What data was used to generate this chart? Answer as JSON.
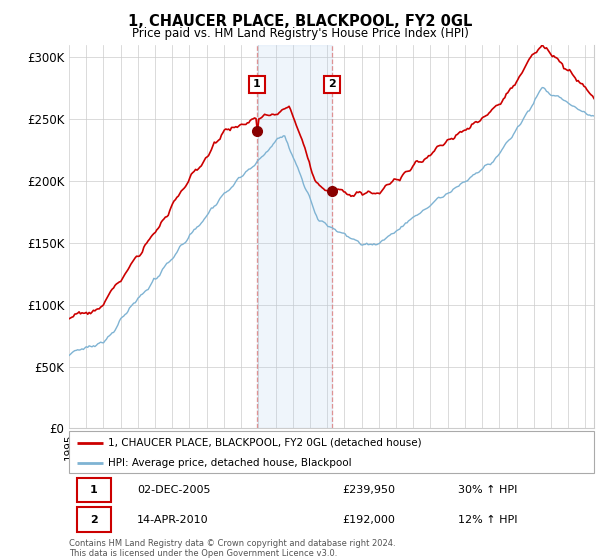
{
  "title": "1, CHAUCER PLACE, BLACKPOOL, FY2 0GL",
  "subtitle": "Price paid vs. HM Land Registry's House Price Index (HPI)",
  "ylim": [
    0,
    310000
  ],
  "yticks": [
    0,
    50000,
    100000,
    150000,
    200000,
    250000,
    300000
  ],
  "ytick_labels": [
    "£0",
    "£50K",
    "£100K",
    "£150K",
    "£200K",
    "£250K",
    "£300K"
  ],
  "sale1_date_x": 2005.92,
  "sale1_price": 239950,
  "sale2_date_x": 2010.29,
  "sale2_price": 192000,
  "sale1_label": "1",
  "sale2_label": "2",
  "hpi_color": "#7fb3d3",
  "price_color": "#cc0000",
  "sale_marker_color": "#880000",
  "shaded_color": "#ddeeff",
  "dashed_line_color": "#dd8888",
  "legend_label1": "1, CHAUCER PLACE, BLACKPOOL, FY2 0GL (detached house)",
  "legend_label2": "HPI: Average price, detached house, Blackpool",
  "table_row1": [
    "1",
    "02-DEC-2005",
    "£239,950",
    "30% ↑ HPI"
  ],
  "table_row2": [
    "2",
    "14-APR-2010",
    "£192,000",
    "12% ↑ HPI"
  ],
  "footer": "Contains HM Land Registry data © Crown copyright and database right 2024.\nThis data is licensed under the Open Government Licence v3.0.",
  "xmin": 1995.0,
  "xmax": 2025.5,
  "background_color": "#ffffff",
  "grid_color": "#cccccc"
}
